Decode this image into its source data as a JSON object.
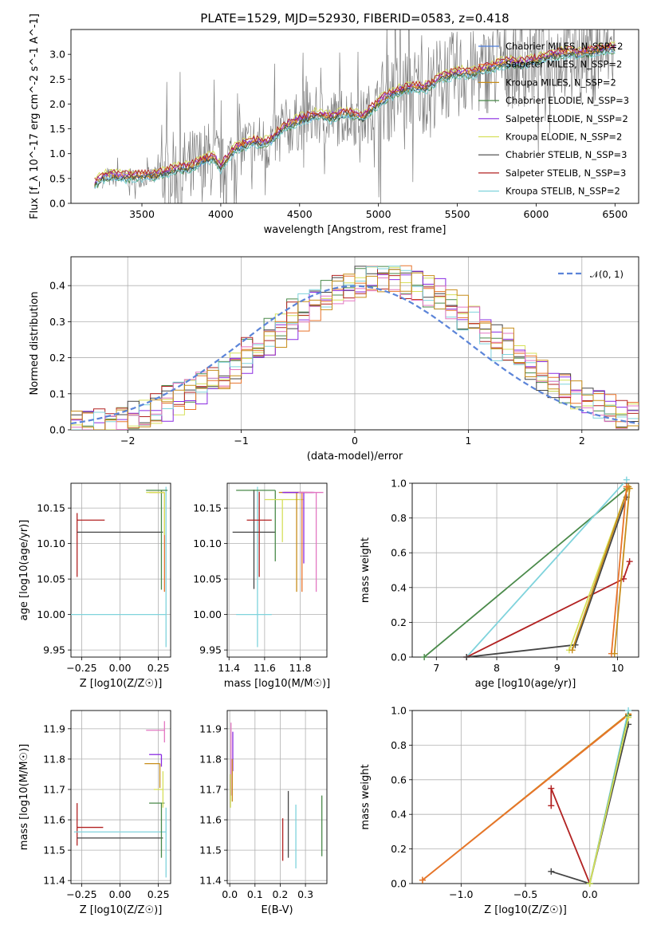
{
  "title": "PLATE=1529, MJD=52930, FIBERID=0583, z=0.418",
  "colors": {
    "Chabrier MILES": "#4c7ddc",
    "Salpeter MILES": "#e8732b",
    "Kroupa MILES": "#c78d1a",
    "Chabrier ELODIE": "#4a8a4a",
    "Salpeter ELODIE": "#8a2be2",
    "Kroupa ELODIE": "#d6e05a",
    "Chabrier STELIB": "#444444",
    "Salpeter STELIB": "#b22222",
    "Kroupa STELIB": "#7fd3dc",
    "Chabrier MILES pink": "#e377c2",
    "data": "#7f7f7f",
    "normal": "#5b84d8"
  },
  "chart_data": [
    {
      "id": "spectrum",
      "type": "line",
      "title": "PLATE=1529, MJD=52930, FIBERID=0583, z=0.418",
      "xlabel": "wavelength [Angstrom, rest frame]",
      "ylabel": "Flux [f_λ 10^-17 erg cm^-2 s^-1 A^-1]",
      "xlim": [
        3050,
        6650
      ],
      "ylim": [
        0,
        3.5
      ],
      "xticks": [
        "3500",
        "4000",
        "4500",
        "5000",
        "5500",
        "6000",
        "6500"
      ],
      "yticks": [
        "0.0",
        "0.5",
        "1.0",
        "1.5",
        "2.0",
        "2.5",
        "3.0"
      ],
      "legend_position": "top-right",
      "legend": [
        "Chabrier MILES, N_SSP=2",
        "Salpeter MILES, N_SSP=2",
        "Kroupa MILES, N_SSP=2",
        "Chabrier ELODIE, N_SSP=3",
        "Salpeter ELODIE, N_SSP=2",
        "Kroupa ELODIE, N_SSP=2",
        "Chabrier STELIB, N_SSP=3",
        "Salpeter STELIB, N_SSP=3",
        "Kroupa STELIB, N_SSP=2"
      ],
      "model_x": [
        3200,
        3250,
        3300,
        3400,
        3500,
        3600,
        3700,
        3800,
        3900,
        3950,
        4000,
        4100,
        4200,
        4300,
        4400,
        4500,
        4600,
        4700,
        4800,
        4900,
        5000,
        5100,
        5200,
        5300,
        5400,
        5500,
        5600,
        5700,
        5800,
        5900,
        6000,
        6100,
        6200,
        6300,
        6400,
        6500
      ],
      "model_y": [
        0.35,
        0.5,
        0.52,
        0.5,
        0.52,
        0.55,
        0.65,
        0.7,
        0.85,
        0.9,
        0.7,
        1.1,
        1.2,
        1.2,
        1.5,
        1.65,
        1.75,
        1.7,
        1.8,
        1.7,
        2.0,
        2.2,
        2.3,
        2.3,
        2.5,
        2.6,
        2.6,
        2.7,
        2.8,
        2.8,
        2.85,
        2.95,
        3.0,
        3.0,
        3.05,
        3.1
      ],
      "model_offsets": [
        0.0,
        0.05,
        0.02,
        -0.03,
        0.08,
        0.12,
        0.0,
        0.1,
        -0.05
      ]
    },
    {
      "id": "residuals",
      "type": "line",
      "xlabel": "(data-model)/error",
      "ylabel": "Normed distribution",
      "xlim": [
        -2.5,
        2.5
      ],
      "ylim": [
        0,
        0.48
      ],
      "xticks": [
        "−2",
        "−1",
        "0",
        "1",
        "2"
      ],
      "yticks": [
        "0.0",
        "0.1",
        "0.2",
        "0.3",
        "0.4"
      ],
      "legend_position": "top-right",
      "legend": [
        "𝒩(0, 1)"
      ],
      "series": [
        {
          "name": "𝒩(0, 1)",
          "function": "normal",
          "mu": 0,
          "sigma": 1
        }
      ]
    },
    {
      "id": "age-vs-Z",
      "type": "scatter",
      "xlabel": "Z [log10(Z/Z☉)]",
      "ylabel": "age  [log10(age/yr)]",
      "xlim": [
        -0.32,
        0.33
      ],
      "ylim": [
        9.94,
        10.185
      ],
      "xticks": [
        "−0.25",
        "0.00",
        "0.25"
      ],
      "yticks": [
        "9.95",
        "10.00",
        "10.05",
        "10.10",
        "10.15"
      ],
      "points": [
        {
          "model": "Salpeter STELIB",
          "x": -0.28,
          "y": 10.133,
          "xerr": [
            0.0,
            0.18
          ],
          "yerr": [
            0.08,
            0.01
          ]
        },
        {
          "model": "Chabrier STELIB",
          "x": 0.28,
          "y": 10.116,
          "xerr": [
            0.56,
            0.0
          ],
          "yerr": [
            0.0,
            0.0
          ]
        },
        {
          "model": "Kroupa STELIB",
          "x": 0.3,
          "y": 10.0,
          "xerr": [
            0.62,
            0.0
          ],
          "yerr": [
            0.046,
            0.18
          ]
        },
        {
          "model": "Chabrier ELODIE",
          "x": 0.27,
          "y": 10.175,
          "xerr": [
            0.1,
            0.04
          ],
          "yerr": [
            0.14,
            0.0
          ]
        },
        {
          "model": "Salpeter MILES",
          "x": 0.29,
          "y": 10.172,
          "xerr": [
            0.1,
            0.0
          ],
          "yerr": [
            0.14,
            0.0
          ]
        },
        {
          "model": "Kroupa ELODIE",
          "x": 0.29,
          "y": 10.172,
          "xerr": [
            0.12,
            0.0
          ],
          "yerr": [
            0.06,
            0.0
          ]
        }
      ]
    },
    {
      "id": "age-vs-mass",
      "type": "scatter",
      "xlabel": "mass [log10(M/M☉)]",
      "ylabel": "",
      "xlim": [
        11.39,
        11.95
      ],
      "ylim": [
        9.94,
        10.185
      ],
      "xticks": [
        "11.4",
        "11.6",
        "11.8"
      ],
      "yticks": [
        "9.95",
        "10.00",
        "10.05",
        "10.10",
        "10.15"
      ],
      "points": [
        {
          "model": "Kroupa STELIB",
          "x": 11.56,
          "y": 10.0,
          "xerr": [
            0.12,
            0.08
          ],
          "yerr": [
            0.046,
            0.18
          ]
        },
        {
          "model": "Chabrier STELIB",
          "x": 11.54,
          "y": 10.116,
          "xerr": [
            0.12,
            0.12
          ],
          "yerr": [
            0.08,
            0.06
          ]
        },
        {
          "model": "Salpeter STELIB",
          "x": 11.57,
          "y": 10.133,
          "xerr": [
            0.07,
            0.07
          ],
          "yerr": [
            0.08,
            0.04
          ]
        },
        {
          "model": "Chabrier ELODIE",
          "x": 11.66,
          "y": 10.175,
          "xerr": [
            0.22,
            0.0
          ],
          "yerr": [
            0.1,
            0.0
          ]
        },
        {
          "model": "Kroupa ELODIE",
          "x": 11.7,
          "y": 10.162,
          "xerr": [
            0.1,
            0.12
          ],
          "yerr": [
            0.06,
            0.0
          ]
        },
        {
          "model": "Kroupa MILES",
          "x": 11.78,
          "y": 10.172,
          "xerr": [
            0.1,
            0.06
          ],
          "yerr": [
            0.14,
            0.0
          ]
        },
        {
          "model": "Salpeter MILES",
          "x": 11.81,
          "y": 10.172,
          "xerr": [
            0.1,
            0.06
          ],
          "yerr": [
            0.14,
            0.0
          ]
        },
        {
          "model": "Salpeter ELODIE",
          "x": 11.82,
          "y": 10.172,
          "xerr": [
            0.12,
            0.06
          ],
          "yerr": [
            0.1,
            0.0
          ]
        },
        {
          "model": "Chabrier MILES pink",
          "x": 11.89,
          "y": 10.172,
          "xerr": [
            0.1,
            0.04
          ],
          "yerr": [
            0.14,
            0.0
          ]
        }
      ]
    },
    {
      "id": "weight-vs-age",
      "type": "line",
      "xlabel": "age  [log10(age/yr)]",
      "ylabel": "mass weight",
      "xlim": [
        6.6,
        10.35
      ],
      "ylim": [
        0,
        1.0
      ],
      "xticks": [
        "7",
        "8",
        "9",
        "10"
      ],
      "yticks": [
        "0.0",
        "0.2",
        "0.4",
        "0.6",
        "0.8",
        "1.0"
      ],
      "series": [
        {
          "name": "Chabrier ELODIE",
          "x": [
            6.8,
            10.15
          ],
          "y": [
            0.0,
            0.97
          ]
        },
        {
          "name": "Kroupa STELIB",
          "x": [
            7.5,
            10.15
          ],
          "y": [
            0.0,
            1.02
          ]
        },
        {
          "name": "Salpeter STELIB",
          "x": [
            7.5,
            10.1,
            10.2
          ],
          "y": [
            0.0,
            0.45,
            0.55
          ]
        },
        {
          "name": "Chabrier STELIB",
          "x": [
            7.5,
            9.3,
            10.15
          ],
          "y": [
            0.0,
            0.07,
            0.92
          ]
        },
        {
          "name": "Kroupa ELODIE",
          "x": [
            9.2,
            10.17
          ],
          "y": [
            0.04,
            0.97
          ]
        },
        {
          "name": "Kroupa MILES",
          "x": [
            9.25,
            10.18
          ],
          "y": [
            0.04,
            0.98
          ]
        },
        {
          "name": "Salpeter MILES",
          "x": [
            9.9,
            10.15
          ],
          "y": [
            0.02,
            0.98
          ]
        },
        {
          "name": "Kroupa MILES",
          "x": [
            9.95,
            10.2
          ],
          "y": [
            0.02,
            0.97
          ]
        }
      ]
    },
    {
      "id": "mass-vs-Z",
      "type": "scatter",
      "xlabel": "Z [log10(Z/Z☉)]",
      "ylabel": "mass [log10(M/M☉)]",
      "xlim": [
        -0.32,
        0.33
      ],
      "ylim": [
        11.39,
        11.96
      ],
      "xticks": [
        "−0.25",
        "0.00",
        "0.25"
      ],
      "yticks": [
        "11.4",
        "11.5",
        "11.6",
        "11.7",
        "11.8",
        "11.9"
      ],
      "points": [
        {
          "model": "Salpeter STELIB",
          "x": -0.28,
          "y": 11.575,
          "xerr": [
            0.0,
            0.17
          ],
          "yerr": [
            0.06,
            0.08
          ]
        },
        {
          "model": "Chabrier STELIB",
          "x": -0.28,
          "y": 11.54,
          "xerr": [
            0.0,
            0.56
          ],
          "yerr": [
            0.0,
            0.0
          ]
        },
        {
          "model": "Kroupa STELIB",
          "x": 0.3,
          "y": 11.56,
          "xerr": [
            0.6,
            0.0
          ],
          "yerr": [
            0.15,
            0.08
          ]
        },
        {
          "model": "Chabrier ELODIE",
          "x": 0.27,
          "y": 11.655,
          "xerr": [
            0.08,
            0.02
          ],
          "yerr": [
            0.18,
            0.0
          ]
        },
        {
          "model": "Kroupa ELODIE",
          "x": 0.28,
          "y": 11.7,
          "xerr": [
            0.06,
            0.0
          ],
          "yerr": [
            0.06,
            0.06
          ]
        },
        {
          "model": "Kroupa MILES",
          "x": 0.26,
          "y": 11.785,
          "xerr": [
            0.1,
            0.0
          ],
          "yerr": [
            0.08,
            0.0
          ]
        },
        {
          "model": "Salpeter ELODIE",
          "x": 0.27,
          "y": 11.815,
          "xerr": [
            0.08,
            0.0
          ],
          "yerr": [
            0.04,
            0.0
          ]
        },
        {
          "model": "Chabrier MILES pink",
          "x": 0.29,
          "y": 11.895,
          "xerr": [
            0.12,
            0.0
          ],
          "yerr": [
            0.04,
            0.03
          ]
        }
      ]
    },
    {
      "id": "mass-vs-ebv",
      "type": "scatter",
      "xlabel": "E(B-V)",
      "ylabel": "",
      "xlim": [
        -0.01,
        0.385
      ],
      "ylim": [
        11.39,
        11.96
      ],
      "xticks": [
        "0.0",
        "0.1",
        "0.2",
        "0.3"
      ],
      "yticks": [
        "11.4",
        "11.5",
        "11.6",
        "11.7",
        "11.8",
        "11.9"
      ],
      "points": [
        {
          "model": "Chabrier MILES pink",
          "x": 0.005,
          "y": 11.88,
          "xerr": [
            0,
            0
          ],
          "yerr": [
            0.2,
            0.04
          ]
        },
        {
          "model": "Salpeter ELODIE",
          "x": 0.012,
          "y": 11.82,
          "xerr": [
            0,
            0
          ],
          "yerr": [
            0.06,
            0.07
          ]
        },
        {
          "model": "Kroupa MILES",
          "x": 0.01,
          "y": 11.74,
          "xerr": [
            0,
            0
          ],
          "yerr": [
            0.08,
            0.06
          ]
        },
        {
          "model": "Kroupa ELODIE",
          "x": 0.003,
          "y": 11.7,
          "xerr": [
            0,
            0
          ],
          "yerr": [
            0.06,
            0.05
          ]
        },
        {
          "model": "Salpeter STELIB",
          "x": 0.21,
          "y": 11.545,
          "xerr": [
            0,
            0
          ],
          "yerr": [
            0.08,
            0.06
          ]
        },
        {
          "model": "Chabrier STELIB",
          "x": 0.232,
          "y": 11.575,
          "xerr": [
            0,
            0
          ],
          "yerr": [
            0.1,
            0.12
          ]
        },
        {
          "model": "Kroupa STELIB",
          "x": 0.262,
          "y": 11.56,
          "xerr": [
            0,
            0
          ],
          "yerr": [
            0.12,
            0.09
          ]
        },
        {
          "model": "Chabrier ELODIE",
          "x": 0.365,
          "y": 11.58,
          "xerr": [
            0,
            0
          ],
          "yerr": [
            0.1,
            0.1
          ]
        }
      ]
    },
    {
      "id": "weight-vs-Z",
      "type": "line",
      "xlabel": "Z [log10(Z/Z☉)]",
      "ylabel": "mass weight",
      "xlim": [
        -1.38,
        0.38
      ],
      "ylim": [
        0,
        1.0
      ],
      "xticks": [
        "−1.0",
        "−0.5",
        "0.0"
      ],
      "yticks": [
        "0.0",
        "0.2",
        "0.4",
        "0.6",
        "0.8",
        "1.0"
      ],
      "series": [
        {
          "name": "Kroupa MILES",
          "x": [
            -1.3,
            0.3
          ],
          "y": [
            0.02,
            0.98
          ]
        },
        {
          "name": "Salpeter MILES",
          "x": [
            -1.3,
            0.3
          ],
          "y": [
            0.02,
            0.975
          ]
        },
        {
          "name": "Salpeter STELIB",
          "x": [
            -0.3,
            -0.3,
            0.0
          ],
          "y": [
            0.45,
            0.55,
            0.0
          ]
        },
        {
          "name": "Chabrier STELIB",
          "x": [
            -0.3,
            0.0,
            0.3
          ],
          "y": [
            0.07,
            0.0,
            0.92
          ]
        },
        {
          "name": "Kroupa STELIB",
          "x": [
            0.0,
            0.3
          ],
          "y": [
            0.0,
            1.0
          ]
        },
        {
          "name": "Chabrier ELODIE",
          "x": [
            0.0,
            0.3
          ],
          "y": [
            0.0,
            0.97
          ]
        },
        {
          "name": "Kroupa ELODIE",
          "x": [
            0.0,
            0.3
          ],
          "y": [
            0.0,
            0.96
          ]
        }
      ]
    }
  ]
}
